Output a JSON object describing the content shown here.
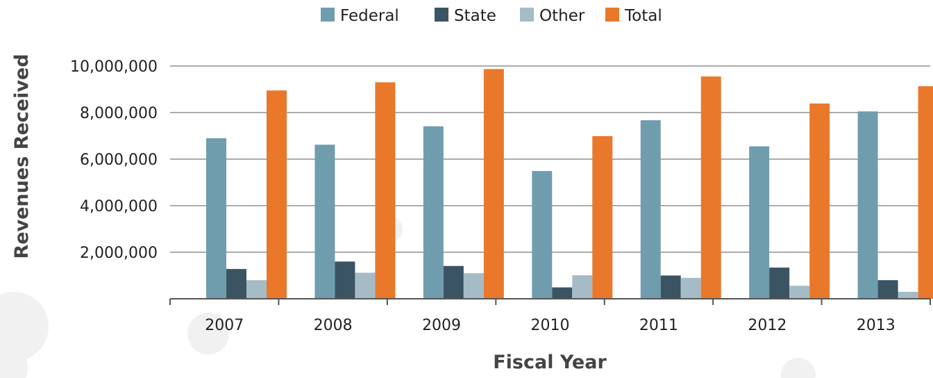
{
  "chart_data": {
    "type": "bar",
    "title": "",
    "xlabel": "Fiscal Year",
    "ylabel": "Revenues Received",
    "categories": [
      "2007",
      "2008",
      "2009",
      "2010",
      "2011",
      "2012",
      "2013"
    ],
    "series": [
      {
        "name": "Federal",
        "color": "#709dae",
        "values": [
          6900000,
          6620000,
          7410000,
          5490000,
          7670000,
          6550000,
          8050000
        ]
      },
      {
        "name": "State",
        "color": "#3b5463",
        "values": [
          1280000,
          1600000,
          1410000,
          490000,
          1000000,
          1340000,
          800000
        ]
      },
      {
        "name": "Other",
        "color": "#a5bcc7",
        "values": [
          800000,
          1120000,
          1100000,
          1010000,
          900000,
          560000,
          300000
        ]
      },
      {
        "name": "Total",
        "color": "#e9782b",
        "values": [
          8950000,
          9300000,
          9870000,
          6990000,
          9550000,
          8390000,
          9130000
        ]
      }
    ],
    "ylim": [
      0,
      10000000
    ],
    "yticks": [
      2000000,
      4000000,
      6000000,
      8000000,
      10000000
    ],
    "ytick_labels": [
      "2,000,000",
      "4,000,000",
      "6,000,000",
      "8,000,000",
      "10,000,000"
    ],
    "grid": true,
    "legend_position": "top-center"
  }
}
